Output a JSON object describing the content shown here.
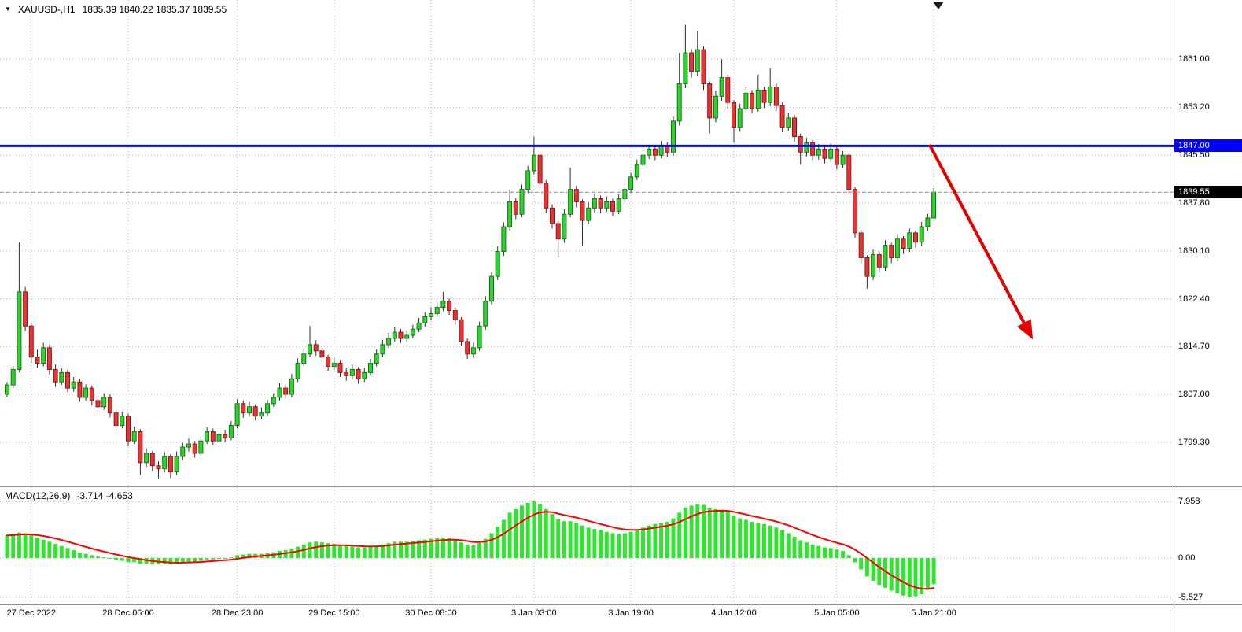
{
  "header": {
    "symbol_period": "XAUUSD-,H1",
    "ohlc_text": "1835.39 1840.22 1835.37 1839.55"
  },
  "colors": {
    "bull": "#30d230",
    "bull_border": "#107a10",
    "bear": "#e83434",
    "bear_border": "#8f1818",
    "wick": "#303030",
    "grid": "#b8b8b8",
    "hline": "#0000ff",
    "bid_line": "#8c8c8c",
    "macd_hist": "#2ee62e",
    "macd_signal": "#ff0000",
    "arrow": "#e60000",
    "tag_hline_bg": "#0000ff",
    "tag_bid_bg": "#000000"
  },
  "chart_data": {
    "type": "candlestick",
    "symbol": "XAUUSD-",
    "timeframe": "H1",
    "bar_spacing": 7.7,
    "x_ticks": [
      {
        "bar": 4,
        "label": "27 Dec 2022"
      },
      {
        "bar": 20,
        "label": "28 Dec 06:00"
      },
      {
        "bar": 38,
        "label": "28 Dec 23:00"
      },
      {
        "bar": 54,
        "label": "29 Dec 15:00"
      },
      {
        "bar": 70,
        "label": "30 Dec 08:00"
      },
      {
        "bar": 87,
        "label": "3 Jan 03:00"
      },
      {
        "bar": 103,
        "label": "3 Jan 19:00"
      },
      {
        "bar": 120,
        "label": "4 Jan 12:00"
      },
      {
        "bar": 137,
        "label": "5 Jan 05:00"
      },
      {
        "bar": 153,
        "label": "5 Jan 21:00"
      }
    ],
    "main": {
      "ylim": [
        1792.3,
        1870.5
      ],
      "grid_prices": [
        1861.0,
        1853.2,
        1845.5,
        1837.8,
        1830.1,
        1822.4,
        1814.7,
        1807.0,
        1799.3
      ],
      "hline": {
        "price": 1847.0,
        "label": "1847.00"
      },
      "bid": {
        "price": 1839.55,
        "label": "1839.55"
      },
      "arrow": {
        "from_bar": 152.3,
        "from_price": 1847.2,
        "to_bar": 169,
        "to_price": 1816.5
      },
      "ohlc": [
        [
          1807.0,
          1809.0,
          1806.5,
          1808.5
        ],
        [
          1808.5,
          1811.6,
          1808.0,
          1811.0
        ],
        [
          1811.0,
          1831.5,
          1810.5,
          1823.5
        ],
        [
          1823.5,
          1824.3,
          1817.2,
          1818.0
        ],
        [
          1818.0,
          1818.5,
          1812.0,
          1813.0
        ],
        [
          1813.0,
          1814.2,
          1811.3,
          1812.0
        ],
        [
          1812.0,
          1815.3,
          1811.5,
          1814.5
        ],
        [
          1814.5,
          1815.0,
          1810.2,
          1811.0
        ],
        [
          1811.0,
          1811.8,
          1808.2,
          1809.0
        ],
        [
          1809.0,
          1811.2,
          1808.5,
          1810.5
        ],
        [
          1810.5,
          1811.0,
          1807.3,
          1808.0
        ],
        [
          1808.0,
          1809.8,
          1807.4,
          1809.0
        ],
        [
          1809.0,
          1809.5,
          1805.8,
          1806.5
        ],
        [
          1806.5,
          1808.6,
          1806.0,
          1808.0
        ],
        [
          1808.0,
          1808.4,
          1805.2,
          1806.0
        ],
        [
          1806.0,
          1806.8,
          1804.2,
          1805.0
        ],
        [
          1805.0,
          1807.2,
          1804.5,
          1806.5
        ],
        [
          1806.5,
          1807.0,
          1803.3,
          1804.0
        ],
        [
          1804.0,
          1804.6,
          1801.2,
          1802.0
        ],
        [
          1802.0,
          1804.2,
          1801.5,
          1803.5
        ],
        [
          1803.5,
          1803.9,
          1798.6,
          1799.5
        ],
        [
          1799.5,
          1801.8,
          1799.0,
          1801.0
        ],
        [
          1801.0,
          1801.4,
          1794.0,
          1796.0
        ],
        [
          1796.0,
          1798.3,
          1795.3,
          1797.5
        ],
        [
          1797.5,
          1797.9,
          1794.6,
          1795.5
        ],
        [
          1795.5,
          1796.2,
          1793.5,
          1795.0
        ],
        [
          1795.0,
          1797.7,
          1794.4,
          1797.0
        ],
        [
          1797.0,
          1797.4,
          1793.5,
          1794.5
        ],
        [
          1794.5,
          1797.8,
          1794.0,
          1797.0
        ],
        [
          1797.0,
          1799.2,
          1796.4,
          1798.5
        ],
        [
          1798.5,
          1799.9,
          1797.8,
          1799.0
        ],
        [
          1799.0,
          1799.5,
          1796.8,
          1797.5
        ],
        [
          1797.5,
          1800.2,
          1797.0,
          1799.5
        ],
        [
          1799.5,
          1801.7,
          1799.0,
          1801.0
        ],
        [
          1801.0,
          1801.5,
          1798.8,
          1799.5
        ],
        [
          1799.5,
          1801.2,
          1799.1,
          1800.5
        ],
        [
          1800.5,
          1801.3,
          1799.3,
          1800.0
        ],
        [
          1800.0,
          1802.7,
          1799.6,
          1802.0
        ],
        [
          1802.0,
          1806.2,
          1801.5,
          1805.5
        ],
        [
          1805.5,
          1806.0,
          1803.2,
          1804.0
        ],
        [
          1804.0,
          1805.8,
          1803.4,
          1805.0
        ],
        [
          1805.0,
          1805.4,
          1802.8,
          1803.5
        ],
        [
          1803.5,
          1804.9,
          1803.0,
          1804.0
        ],
        [
          1804.0,
          1806.1,
          1803.5,
          1805.5
        ],
        [
          1805.5,
          1807.2,
          1805.0,
          1806.5
        ],
        [
          1806.5,
          1808.8,
          1806.0,
          1808.0
        ],
        [
          1808.0,
          1808.6,
          1806.3,
          1807.0
        ],
        [
          1807.0,
          1810.3,
          1806.5,
          1809.5
        ],
        [
          1809.5,
          1812.8,
          1809.0,
          1812.0
        ],
        [
          1812.0,
          1814.4,
          1811.4,
          1813.5
        ],
        [
          1813.5,
          1818.0,
          1813.0,
          1815.0
        ],
        [
          1815.0,
          1815.7,
          1813.2,
          1814.0
        ],
        [
          1814.0,
          1814.5,
          1812.2,
          1813.0
        ],
        [
          1813.0,
          1813.4,
          1810.8,
          1811.5
        ],
        [
          1811.5,
          1812.9,
          1810.9,
          1812.0
        ],
        [
          1812.0,
          1812.4,
          1809.8,
          1810.5
        ],
        [
          1810.5,
          1811.2,
          1809.2,
          1810.0
        ],
        [
          1810.0,
          1811.8,
          1809.4,
          1811.0
        ],
        [
          1811.0,
          1811.4,
          1808.7,
          1809.5
        ],
        [
          1809.5,
          1811.3,
          1809.0,
          1810.5
        ],
        [
          1810.5,
          1812.7,
          1810.0,
          1812.0
        ],
        [
          1812.0,
          1814.2,
          1811.5,
          1813.5
        ],
        [
          1813.5,
          1815.8,
          1813.0,
          1815.0
        ],
        [
          1815.0,
          1816.9,
          1814.4,
          1816.0
        ],
        [
          1816.0,
          1817.8,
          1815.5,
          1817.0
        ],
        [
          1817.0,
          1817.5,
          1815.3,
          1816.0
        ],
        [
          1816.0,
          1817.3,
          1815.4,
          1816.5
        ],
        [
          1816.5,
          1818.2,
          1816.0,
          1817.5
        ],
        [
          1817.5,
          1819.3,
          1817.0,
          1818.5
        ],
        [
          1818.5,
          1820.2,
          1817.9,
          1819.5
        ],
        [
          1819.5,
          1821.0,
          1818.9,
          1820.0
        ],
        [
          1820.0,
          1821.9,
          1819.4,
          1821.0
        ],
        [
          1821.0,
          1823.5,
          1820.4,
          1822.0
        ],
        [
          1822.0,
          1822.4,
          1819.8,
          1820.5
        ],
        [
          1820.5,
          1821.0,
          1818.2,
          1819.0
        ],
        [
          1819.0,
          1819.4,
          1814.8,
          1815.5
        ],
        [
          1815.5,
          1816.0,
          1812.7,
          1813.5
        ],
        [
          1813.5,
          1815.3,
          1812.9,
          1814.5
        ],
        [
          1814.5,
          1818.7,
          1814.0,
          1818.0
        ],
        [
          1818.0,
          1822.8,
          1817.4,
          1822.0
        ],
        [
          1822.0,
          1826.7,
          1821.5,
          1826.0
        ],
        [
          1826.0,
          1830.8,
          1825.4,
          1830.0
        ],
        [
          1830.0,
          1834.7,
          1829.3,
          1834.0
        ],
        [
          1834.0,
          1840.0,
          1833.4,
          1838.0
        ],
        [
          1838.0,
          1838.6,
          1835.2,
          1836.0
        ],
        [
          1836.0,
          1840.8,
          1835.5,
          1840.0
        ],
        [
          1840.0,
          1843.8,
          1839.4,
          1843.0
        ],
        [
          1843.0,
          1848.5,
          1842.4,
          1845.5
        ],
        [
          1845.5,
          1846.0,
          1840.2,
          1841.0
        ],
        [
          1841.0,
          1841.5,
          1836.2,
          1837.0
        ],
        [
          1837.0,
          1837.6,
          1833.7,
          1834.5
        ],
        [
          1834.5,
          1835.0,
          1829.0,
          1832.0
        ],
        [
          1832.0,
          1836.8,
          1831.4,
          1836.0
        ],
        [
          1836.0,
          1843.5,
          1835.5,
          1840.0
        ],
        [
          1840.0,
          1840.6,
          1837.1,
          1838.0
        ],
        [
          1838.0,
          1838.4,
          1831.0,
          1835.0
        ],
        [
          1835.0,
          1837.9,
          1834.4,
          1837.0
        ],
        [
          1837.0,
          1839.3,
          1836.3,
          1838.5
        ],
        [
          1838.5,
          1839.0,
          1836.2,
          1837.0
        ],
        [
          1837.0,
          1838.9,
          1836.4,
          1838.0
        ],
        [
          1838.0,
          1838.5,
          1835.7,
          1836.5
        ],
        [
          1836.5,
          1839.2,
          1836.0,
          1838.5
        ],
        [
          1838.5,
          1840.9,
          1838.0,
          1840.0
        ],
        [
          1840.0,
          1842.7,
          1839.4,
          1842.0
        ],
        [
          1842.0,
          1844.8,
          1841.5,
          1844.0
        ],
        [
          1844.0,
          1846.3,
          1843.3,
          1845.5
        ],
        [
          1845.5,
          1847.2,
          1844.9,
          1846.5
        ],
        [
          1846.5,
          1847.0,
          1844.7,
          1845.5
        ],
        [
          1845.5,
          1847.8,
          1845.0,
          1847.0
        ],
        [
          1847.0,
          1847.6,
          1845.2,
          1846.0
        ],
        [
          1846.0,
          1851.8,
          1845.4,
          1851.0
        ],
        [
          1851.0,
          1862.0,
          1850.3,
          1857.0
        ],
        [
          1857.0,
          1866.5,
          1856.3,
          1862.0
        ],
        [
          1862.0,
          1862.6,
          1858.0,
          1859.0
        ],
        [
          1859.0,
          1865.5,
          1858.3,
          1862.5
        ],
        [
          1862.5,
          1863.0,
          1856.0,
          1857.0
        ],
        [
          1857.0,
          1857.4,
          1849.0,
          1851.5
        ],
        [
          1851.5,
          1855.9,
          1850.8,
          1855.0
        ],
        [
          1855.0,
          1861.0,
          1854.3,
          1858.0
        ],
        [
          1858.0,
          1858.5,
          1853.0,
          1854.0
        ],
        [
          1854.0,
          1854.4,
          1847.5,
          1850.0
        ],
        [
          1850.0,
          1853.8,
          1849.3,
          1853.0
        ],
        [
          1853.0,
          1856.4,
          1852.4,
          1855.5
        ],
        [
          1855.5,
          1856.0,
          1852.2,
          1853.0
        ],
        [
          1853.0,
          1858.5,
          1852.5,
          1856.0
        ],
        [
          1856.0,
          1856.5,
          1853.1,
          1854.0
        ],
        [
          1854.0,
          1859.5,
          1853.4,
          1856.5
        ],
        [
          1856.5,
          1857.0,
          1852.6,
          1853.5
        ],
        [
          1853.5,
          1854.0,
          1849.2,
          1850.0
        ],
        [
          1850.0,
          1852.3,
          1849.4,
          1851.5
        ],
        [
          1851.5,
          1852.0,
          1847.7,
          1848.5
        ],
        [
          1848.5,
          1849.0,
          1844.0,
          1846.0
        ],
        [
          1846.0,
          1848.3,
          1845.3,
          1847.5
        ],
        [
          1847.5,
          1848.0,
          1844.7,
          1845.5
        ],
        [
          1845.5,
          1847.3,
          1844.8,
          1846.5
        ],
        [
          1846.5,
          1847.0,
          1844.2,
          1845.0
        ],
        [
          1845.0,
          1847.4,
          1844.4,
          1846.5
        ],
        [
          1846.5,
          1847.0,
          1843.2,
          1844.0
        ],
        [
          1844.0,
          1846.2,
          1843.4,
          1845.5
        ],
        [
          1845.5,
          1845.9,
          1839.2,
          1840.0
        ],
        [
          1840.0,
          1840.4,
          1832.2,
          1833.0
        ],
        [
          1833.0,
          1833.5,
          1828.0,
          1829.0
        ],
        [
          1829.0,
          1829.4,
          1824.0,
          1826.0
        ],
        [
          1826.0,
          1830.3,
          1825.4,
          1829.5
        ],
        [
          1829.5,
          1830.0,
          1826.6,
          1827.5
        ],
        [
          1827.5,
          1831.8,
          1826.9,
          1831.0
        ],
        [
          1831.0,
          1831.4,
          1828.1,
          1829.0
        ],
        [
          1829.0,
          1832.8,
          1828.4,
          1832.0
        ],
        [
          1832.0,
          1832.5,
          1829.6,
          1830.5
        ],
        [
          1830.5,
          1833.7,
          1829.9,
          1833.0
        ],
        [
          1833.0,
          1833.4,
          1830.6,
          1831.5
        ],
        [
          1831.5,
          1834.8,
          1830.9,
          1834.0
        ],
        [
          1834.0,
          1836.1,
          1833.3,
          1835.4
        ],
        [
          1835.39,
          1840.22,
          1835.37,
          1839.55
        ]
      ]
    },
    "macd": {
      "label_title": "MACD(12,26,9)",
      "label_values": "-3.714 -4.653",
      "params": [
        12,
        26,
        9
      ],
      "main_value": -3.714,
      "signal_value": -4.653,
      "signal_ema_period": 9,
      "ylim": [
        -6.44,
        10.0
      ],
      "axis_labels": [
        {
          "value": 7.958,
          "label": "7.958"
        },
        {
          "value": 0,
          "label": "0.00"
        },
        {
          "value": -5.527,
          "label": "-5.527"
        }
      ],
      "values": [
        3.2,
        3.4,
        3.6,
        3.5,
        3.2,
        2.9,
        2.6,
        2.3,
        2.0,
        1.7,
        1.4,
        1.1,
        0.8,
        0.6,
        0.4,
        0.2,
        0.1,
        -0.1,
        -0.3,
        -0.4,
        -0.6,
        -0.6,
        -0.8,
        -0.8,
        -0.9,
        -0.9,
        -0.8,
        -0.9,
        -0.8,
        -0.6,
        -0.5,
        -0.5,
        -0.4,
        -0.2,
        -0.2,
        -0.1,
        -0.1,
        0.1,
        0.4,
        0.5,
        0.6,
        0.6,
        0.6,
        0.7,
        0.8,
        1.0,
        1.1,
        1.3,
        1.6,
        1.9,
        2.2,
        2.3,
        2.2,
        2.1,
        2.0,
        1.8,
        1.7,
        1.6,
        1.5,
        1.5,
        1.6,
        1.7,
        1.9,
        2.1,
        2.3,
        2.3,
        2.3,
        2.4,
        2.5,
        2.6,
        2.7,
        2.8,
        2.9,
        2.8,
        2.6,
        2.2,
        1.9,
        1.8,
        2.1,
        2.7,
        3.5,
        4.4,
        5.4,
        6.4,
        6.9,
        7.4,
        7.8,
        8.0,
        7.6,
        6.9,
        6.2,
        5.5,
        5.2,
        5.2,
        5.0,
        4.6,
        4.3,
        4.1,
        3.9,
        3.7,
        3.5,
        3.4,
        3.5,
        3.7,
        4.0,
        4.3,
        4.6,
        4.8,
        5.0,
        5.1,
        5.6,
        6.4,
        7.1,
        7.4,
        7.6,
        7.5,
        7.1,
        6.9,
        6.8,
        6.5,
        6.0,
        5.6,
        5.4,
        5.1,
        5.0,
        4.8,
        4.6,
        4.3,
        3.9,
        3.5,
        3.0,
        2.5,
        2.2,
        1.9,
        1.7,
        1.5,
        1.4,
        1.2,
        1.0,
        0.4,
        -0.6,
        -1.6,
        -2.6,
        -3.2,
        -3.8,
        -4.2,
        -4.6,
        -5.0,
        -5.3,
        -5.5,
        -5.4,
        -5.1,
        -4.5,
        -3.71
      ]
    }
  }
}
